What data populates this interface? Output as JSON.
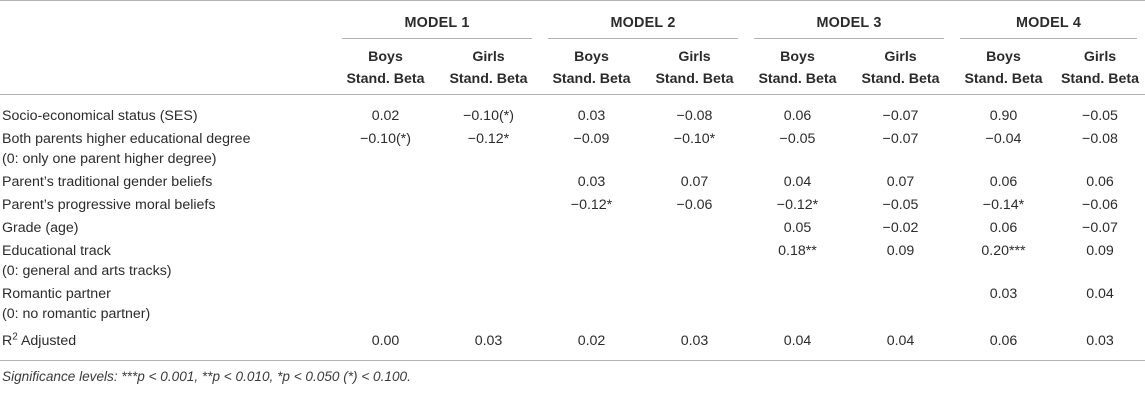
{
  "models": [
    "MODEL 1",
    "MODEL 2",
    "MODEL 3",
    "MODEL 4"
  ],
  "subheaders": [
    {
      "top": "Boys",
      "bottom": "Stand. Beta"
    },
    {
      "top": "Girls",
      "bottom": "Stand. Beta"
    },
    {
      "top": "Boys",
      "bottom": "Stand. Beta"
    },
    {
      "top": "Girls",
      "bottom": "Stand. Beta"
    },
    {
      "top": "Boys",
      "bottom": "Stand. Beta"
    },
    {
      "top": "Girls",
      "bottom": "Stand. Beta"
    },
    {
      "top": "Boys",
      "bottom": "Stand. Beta"
    },
    {
      "top": "Girls",
      "bottom": "Stand. Beta"
    }
  ],
  "rows": [
    {
      "label": "Socio-economical status (SES)",
      "sub": "",
      "values": [
        "0.02",
        "−0.10(*)",
        "0.03",
        "−0.08",
        "0.06",
        "−0.07",
        "0.90",
        "−0.05"
      ]
    },
    {
      "label": "Both parents higher educational degree",
      "sub": "(0: only one parent higher degree)",
      "values": [
        "−0.10(*)",
        "−0.12*",
        "−0.09",
        "−0.10*",
        "−0.05",
        "−0.07",
        "−0.04",
        "−0.08"
      ]
    },
    {
      "label": "Parent’s traditional gender beliefs",
      "sub": "",
      "values": [
        "",
        "",
        "0.03",
        "0.07",
        "0.04",
        "0.07",
        "0.06",
        "0.06"
      ]
    },
    {
      "label": "Parent’s progressive moral beliefs",
      "sub": "",
      "values": [
        "",
        "",
        "−0.12*",
        "−0.06",
        "−0.12*",
        "−0.05",
        "−0.14*",
        "−0.06"
      ]
    },
    {
      "label": "Grade (age)",
      "sub": "",
      "values": [
        "",
        "",
        "",
        "",
        "0.05",
        "−0.02",
        "0.06",
        "−0.07"
      ]
    },
    {
      "label": "Educational track",
      "sub": "(0: general and arts tracks)",
      "values": [
        "",
        "",
        "",
        "",
        "0.18**",
        "0.09",
        "0.20***",
        "0.09"
      ]
    },
    {
      "label": "Romantic partner",
      "sub": "(0: no romantic partner)",
      "values": [
        "",
        "",
        "",
        "",
        "",
        "",
        "0.03",
        "0.04"
      ]
    }
  ],
  "r2": {
    "label_main": "R",
    "label_sup": "2",
    "label_rest": " Adjusted",
    "values": [
      "0.00",
      "0.03",
      "0.02",
      "0.03",
      "0.04",
      "0.04",
      "0.06",
      "0.03"
    ]
  },
  "footnote": "Significance levels: ***p < 0.001, **p < 0.010, *p < 0.050 (*) < 0.100."
}
